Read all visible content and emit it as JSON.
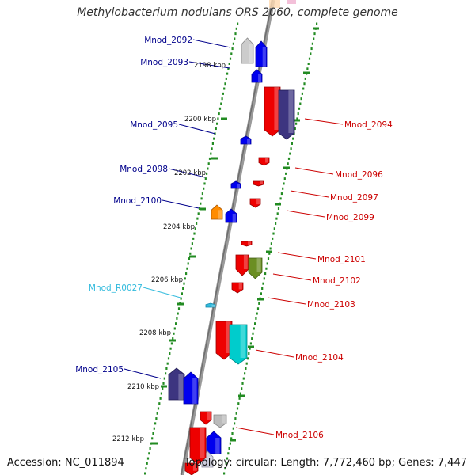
{
  "title": "Methylobacterium nodulans ORS 2060, complete genome",
  "footer": {
    "accession_label": "Accession:",
    "accession": "NC_011894",
    "topology_label": "Topology:",
    "topology": "circular",
    "length_label": "Length:",
    "length": "7,772,460 bp",
    "genes_label": "Genes:",
    "genes": "7,447"
  },
  "colors": {
    "backbone": "#888888",
    "tick": "#228b22",
    "label_forward": "#00008b",
    "label_reverse": "#cc0000",
    "label_rna": "#33bbdd"
  },
  "kbp_ticks": [
    "2198 kbp",
    "2200 kbp",
    "2202 kbp",
    "2204 kbp",
    "2206 kbp",
    "2208 kbp",
    "2210 kbp",
    "2212 kbp"
  ],
  "genes": [
    {
      "label": "Mnod_2092",
      "strand": "forward"
    },
    {
      "label": "Mnod_2093",
      "strand": "forward"
    },
    {
      "label": "Mnod_2095",
      "strand": "forward"
    },
    {
      "label": "Mnod_2098",
      "strand": "forward"
    },
    {
      "label": "Mnod_2100",
      "strand": "forward"
    },
    {
      "label": "Mnod_R0027",
      "strand": "rna"
    },
    {
      "label": "Mnod_2105",
      "strand": "forward"
    },
    {
      "label": "Mnod_2094",
      "strand": "reverse"
    },
    {
      "label": "Mnod_2096",
      "strand": "reverse"
    },
    {
      "label": "Mnod_2097",
      "strand": "reverse"
    },
    {
      "label": "Mnod_2099",
      "strand": "reverse"
    },
    {
      "label": "Mnod_2101",
      "strand": "reverse"
    },
    {
      "label": "Mnod_2102",
      "strand": "reverse"
    },
    {
      "label": "Mnod_2103",
      "strand": "reverse"
    },
    {
      "label": "Mnod_2104",
      "strand": "reverse"
    },
    {
      "label": "Mnod_2106",
      "strand": "reverse"
    }
  ]
}
